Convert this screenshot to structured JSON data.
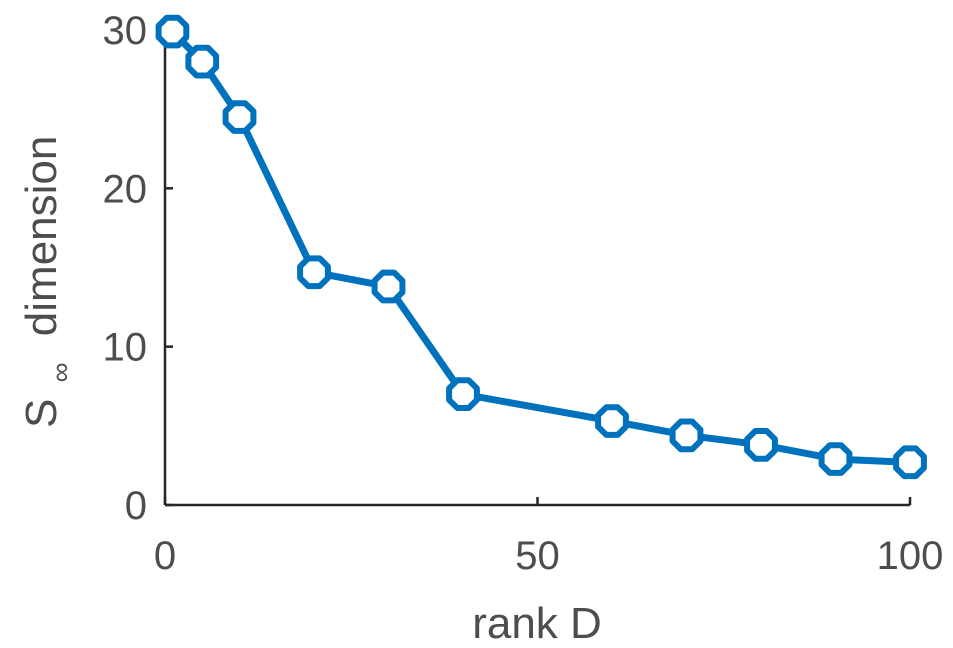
{
  "chart_data": {
    "type": "line",
    "xlabel": "rank D",
    "ylabel": "S",
    "ylabel_subscript": "∞",
    "ylabel_suffix": "dimension",
    "xlim": [
      0,
      100
    ],
    "ylim": [
      0,
      30
    ],
    "xticks": [
      0,
      50,
      100
    ],
    "yticks": [
      0,
      10,
      20,
      30
    ],
    "grid": false,
    "series": [
      {
        "color": "#0072bd",
        "marker": "octagon",
        "x": [
          1,
          5,
          10,
          20,
          30,
          40,
          60,
          70,
          80,
          90,
          100
        ],
        "y": [
          29.9,
          28.0,
          24.5,
          14.7,
          13.8,
          7.0,
          5.3,
          4.4,
          3.8,
          2.9,
          2.7
        ]
      }
    ]
  }
}
